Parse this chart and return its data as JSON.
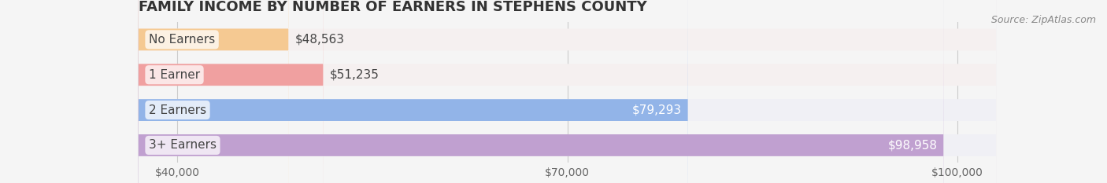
{
  "title": "FAMILY INCOME BY NUMBER OF EARNERS IN STEPHENS COUNTY",
  "source": "Source: ZipAtlas.com",
  "categories": [
    "No Earners",
    "1 Earner",
    "2 Earners",
    "3+ Earners"
  ],
  "values": [
    48563,
    51235,
    79293,
    98958
  ],
  "bar_colors": [
    "#f5c992",
    "#f0a0a0",
    "#92b4e8",
    "#c0a0d0"
  ],
  "bar_bg_colors": [
    "#f5f0f0",
    "#f5f0f0",
    "#f0f0f5",
    "#f0f0f5"
  ],
  "label_colors": [
    "#555555",
    "#555555",
    "#ffffff",
    "#ffffff"
  ],
  "xlim_min": 37000,
  "xlim_max": 103000,
  "xticks": [
    40000,
    70000,
    100000
  ],
  "xtick_labels": [
    "$40,000",
    "$70,000",
    "$100,000"
  ],
  "background_color": "#f5f5f5",
  "bar_height": 0.62,
  "title_fontsize": 13,
  "tick_fontsize": 10,
  "label_fontsize": 11
}
